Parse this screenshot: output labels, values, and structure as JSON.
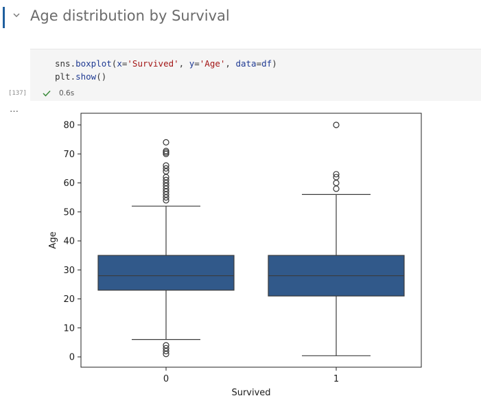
{
  "markdown_cell": {
    "title": "Age distribution by Survival"
  },
  "code_cell": {
    "line1": {
      "t1": "sns.",
      "t2": "boxplot",
      "t3": "(",
      "t4": "x",
      "t5": "=",
      "t6": "'Survived'",
      "t7": ",",
      "t8": " y",
      "t9": "=",
      "t10": "'Age'",
      "t11": ",",
      "t12": " data",
      "t13": "=",
      "t14": "df",
      "t15": ")"
    },
    "line2": {
      "t1": "plt.",
      "t2": "show",
      "t3": "()"
    },
    "execution_count": "[137]",
    "status_time": "0.6s",
    "output_menu": "…"
  },
  "colors": {
    "box_fill": "#31598a",
    "line": "#3b3b3b",
    "accent_bar": "#1f5f9e",
    "check": "#3a8a3a"
  },
  "icons": {
    "collapse": "chevron-down-icon",
    "status": "check-icon"
  },
  "chart_data": {
    "type": "box",
    "title": "",
    "xlabel": "Survived",
    "ylabel": "Age",
    "ylim": [
      -3,
      84
    ],
    "yticks": [
      0,
      10,
      20,
      30,
      40,
      50,
      60,
      70,
      80
    ],
    "categories": [
      "0",
      "1"
    ],
    "boxes": [
      {
        "category": "0",
        "whisker_low": 6,
        "q1": 23,
        "median": 28,
        "q3": 35,
        "whisker_high": 52,
        "outliers": [
          1,
          2,
          3,
          4,
          54,
          55,
          56,
          57,
          58,
          59,
          60,
          61,
          62,
          64,
          65,
          66,
          70,
          70.5,
          71,
          74
        ]
      },
      {
        "category": "1",
        "whisker_low": 0.4,
        "q1": 21,
        "median": 28,
        "q3": 35,
        "whisker_high": 56,
        "outliers": [
          58,
          60,
          62,
          63,
          80
        ]
      }
    ],
    "grid": false
  }
}
